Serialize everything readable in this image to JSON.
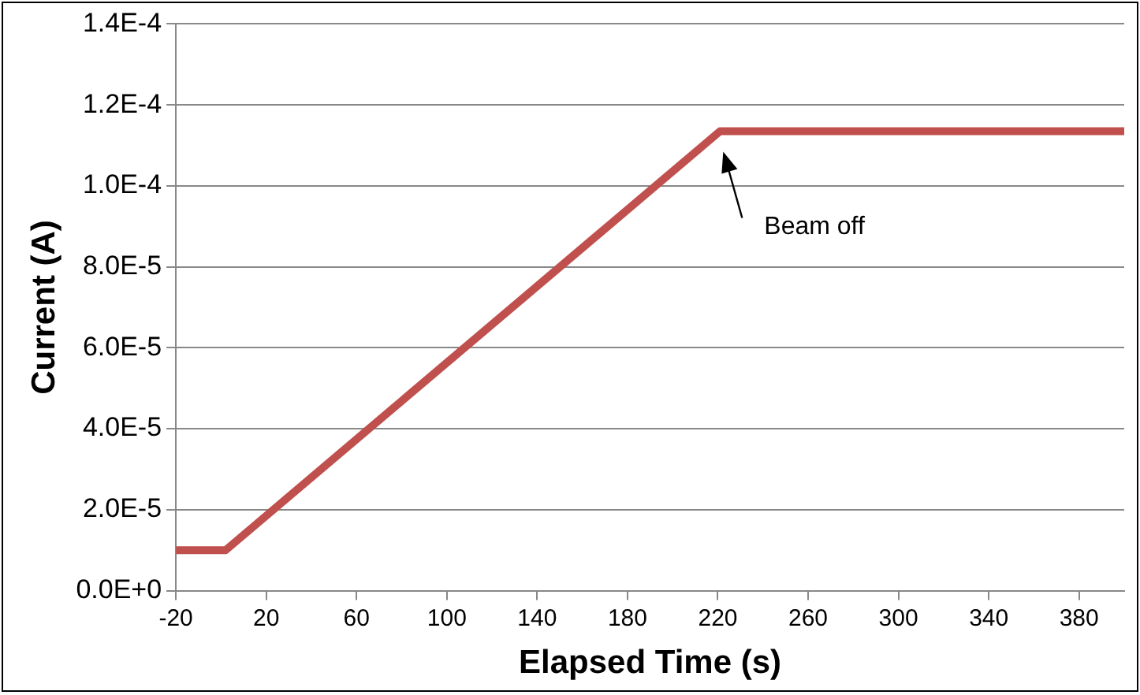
{
  "chart_data": {
    "type": "line",
    "xlabel": "Elapsed Time (s)",
    "ylabel": "Current (A)",
    "x": [
      -20,
      2,
      221,
      400
    ],
    "series": [
      {
        "color": "#c0504d",
        "values": [
          1e-05,
          1e-05,
          0.0001135,
          0.0001135
        ]
      }
    ],
    "xlim": [
      -20,
      400
    ],
    "xticks": [
      -20,
      20,
      60,
      100,
      140,
      180,
      220,
      260,
      300,
      340,
      380
    ],
    "ylim": [
      0,
      0.00014
    ],
    "yticks": [
      {
        "value": 0,
        "label": "0.0E+0"
      },
      {
        "value": 2e-05,
        "label": "2.0E-5"
      },
      {
        "value": 4e-05,
        "label": "4.0E-5"
      },
      {
        "value": 6e-05,
        "label": "6.0E-5"
      },
      {
        "value": 8e-05,
        "label": "8.0E-5"
      },
      {
        "value": 0.0001,
        "label": "1.0E-4"
      },
      {
        "value": 0.00012,
        "label": "1.2E-4"
      },
      {
        "value": 0.00014,
        "label": "1.4E-4"
      }
    ],
    "grid": "y",
    "legend": false,
    "marker": "none",
    "line_style": "solid",
    "annotations": [
      "Beam off"
    ]
  }
}
